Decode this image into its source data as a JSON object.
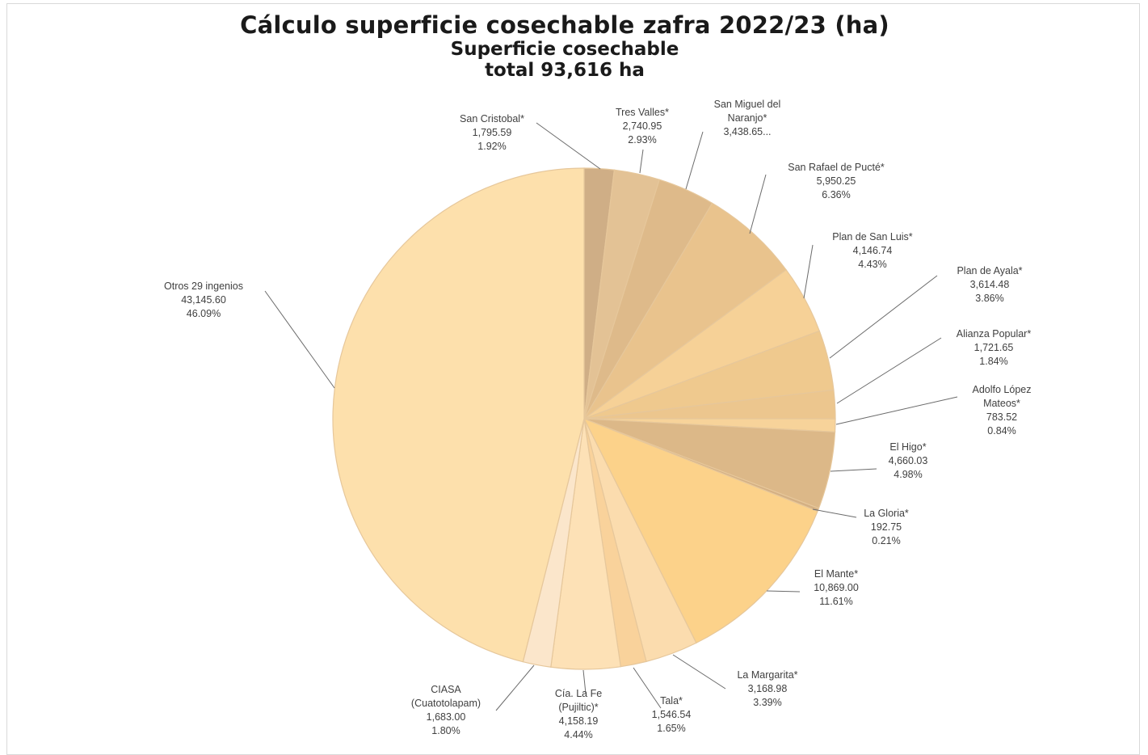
{
  "title": "Cálculo superficie cosechable zafra 2022/23 (ha)",
  "subtitle_line1": "Superficie cosechable",
  "subtitle_line2": "total  93,616 ha",
  "chart_data": {
    "type": "pie",
    "title": "Cálculo superficie cosechable zafra 2022/23 (ha)",
    "subtitle": "Superficie cosechable total 93,616 ha",
    "total": 93616,
    "unit": "ha",
    "start_angle_deg": 0,
    "direction": "clockwise",
    "slices": [
      {
        "label": "San Cristobal*",
        "label_lines": [
          "San Cristobal*"
        ],
        "value": 1795.59,
        "value_text": "1,795.59",
        "percent_text": "1.92%",
        "color": "#cfae86"
      },
      {
        "label": "Tres Valles*",
        "label_lines": [
          "Tres Valles*"
        ],
        "value": 2740.95,
        "value_text": "2,740.95",
        "percent_text": "2.93%",
        "color": "#e3c295"
      },
      {
        "label": "San Miguel del Naranjo*",
        "label_lines": [
          "San Miguel del",
          "Naranjo*"
        ],
        "value": 3438.65,
        "value_text": "3,438.65...",
        "percent_text": "",
        "color": "#deba8a"
      },
      {
        "label": "San Rafael de Pucté*",
        "label_lines": [
          "San Rafael de Pucté*"
        ],
        "value": 5950.25,
        "value_text": "5,950.25",
        "percent_text": "6.36%",
        "color": "#e9c38d"
      },
      {
        "label": "Plan de San Luis*",
        "label_lines": [
          "Plan de San Luis*"
        ],
        "value": 4146.74,
        "value_text": "4,146.74",
        "percent_text": "4.43%",
        "color": "#f6d197"
      },
      {
        "label": "Plan de Ayala*",
        "label_lines": [
          "Plan de Ayala*"
        ],
        "value": 3614.48,
        "value_text": "3,614.48",
        "percent_text": "3.86%",
        "color": "#efc98e"
      },
      {
        "label": "Alianza Popular*",
        "label_lines": [
          "Alianza Popular*"
        ],
        "value": 1721.65,
        "value_text": "1,721.65",
        "percent_text": "1.84%",
        "color": "#ecc68e"
      },
      {
        "label": "Adolfo López Mateos*",
        "label_lines": [
          "Adolfo López",
          "Mateos*"
        ],
        "value": 783.52,
        "value_text": "783.52",
        "percent_text": "0.84%",
        "color": "#f7d39a"
      },
      {
        "label": "El Higo*",
        "label_lines": [
          "El Higo*"
        ],
        "value": 4660.03,
        "value_text": "4,660.03",
        "percent_text": "4.98%",
        "color": "#dcb888"
      },
      {
        "label": "La Gloria*",
        "label_lines": [
          "La Gloria*"
        ],
        "value": 192.75,
        "value_text": "192.75",
        "percent_text": "0.21%",
        "color": "#d4b083"
      },
      {
        "label": "El Mante*",
        "label_lines": [
          "El Mante*"
        ],
        "value": 10869.0,
        "value_text": "10,869.00",
        "percent_text": "11.61%",
        "color": "#fcd28a"
      },
      {
        "label": "La Margarita*",
        "label_lines": [
          "La Margarita*"
        ],
        "value": 3168.98,
        "value_text": "3,168.98",
        "percent_text": "3.39%",
        "color": "#fbdcae"
      },
      {
        "label": "Tala*",
        "label_lines": [
          "Tala*"
        ],
        "value": 1546.54,
        "value_text": "1,546.54",
        "percent_text": "1.65%",
        "color": "#f9d29b"
      },
      {
        "label": "Cía. La Fe (Pujiltic)*",
        "label_lines": [
          "Cía. La Fe",
          "(Pujiltic)*"
        ],
        "value": 4158.19,
        "value_text": "4,158.19",
        "percent_text": "4.44%",
        "color": "#fde1b6"
      },
      {
        "label": "CIASA (Cuatotolapam)",
        "label_lines": [
          "CIASA",
          "(Cuatotolapam)"
        ],
        "value": 1683.0,
        "value_text": "1,683.00",
        "percent_text": "1.80%",
        "color": "#fbe6cb"
      },
      {
        "label": "Otros 29 ingenios",
        "label_lines": [
          "Otros 29 ingenios"
        ],
        "value": 43145.6,
        "value_text": "43,145.60",
        "percent_text": "46.09%",
        "color": "#fde0ac"
      }
    ]
  }
}
